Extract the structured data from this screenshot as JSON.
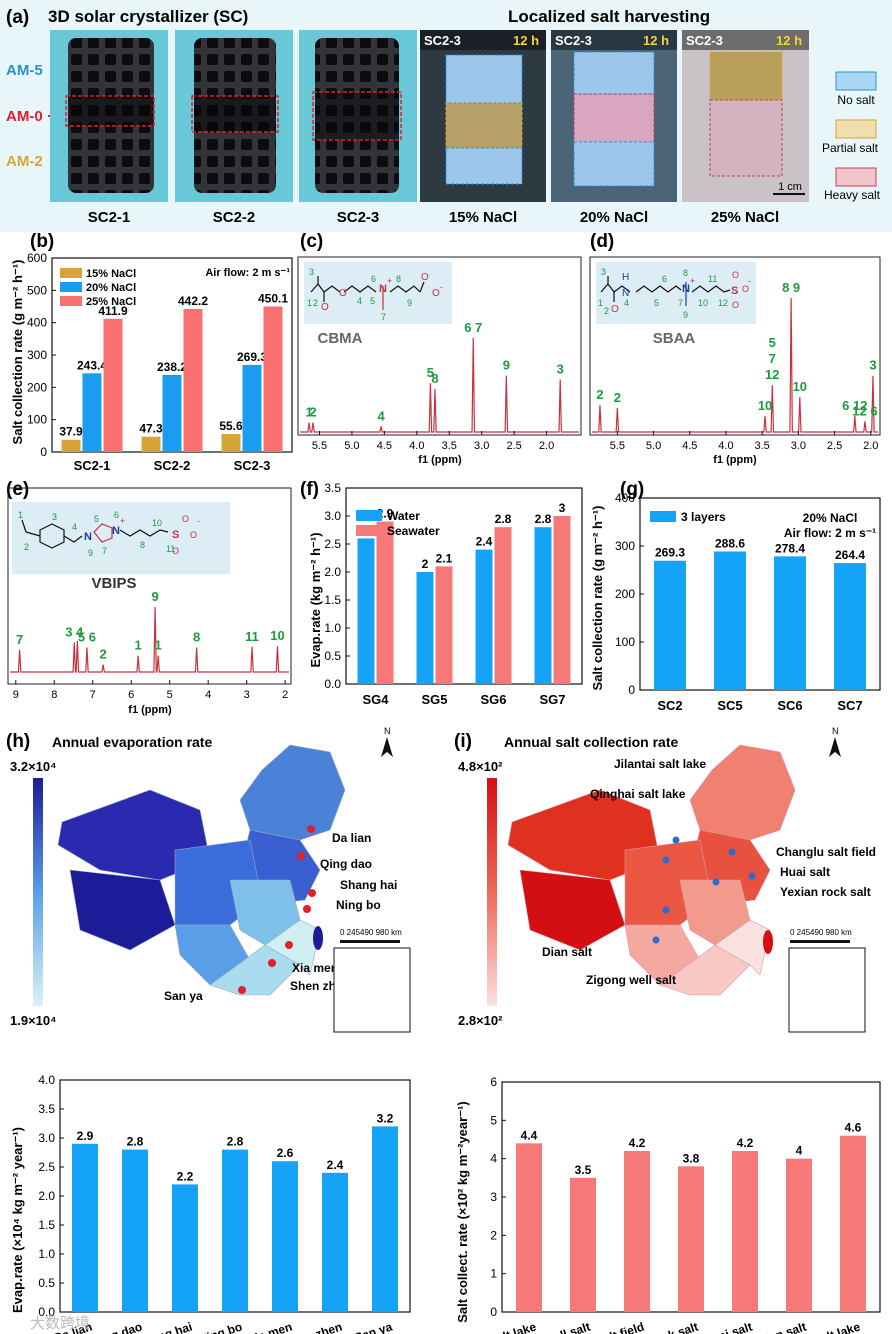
{
  "colors": {
    "teal_bg": "#69c8d8",
    "blue": "#1a9df0",
    "red": "#f87070",
    "tan": "#d6a437",
    "nmr": "#c6323f",
    "green": "#1f9a3d",
    "navy": "#1c1c98",
    "bar_blue": "#14a3f7",
    "bar_red": "#f67878"
  },
  "panel_a": {
    "label": "(a)",
    "title_left": "3D solar crystallizer (SC)",
    "title_right": "Localized salt harvesting",
    "side_labels": [
      "AM-5",
      "AM-0",
      "AM-2"
    ],
    "sc_captions": [
      "SC2-1",
      "SC2-2",
      "SC2-3"
    ],
    "photo_captions": [
      "15% NaCl",
      "20% NaCl",
      "25% NaCl"
    ],
    "photo_tag": "SC2-3",
    "photo_time": "12 h",
    "scale_bar": "1 cm",
    "legend": [
      "No salt",
      "Partial salt",
      "Heavy salt"
    ]
  },
  "panel_b": {
    "label": "(b)",
    "note": "Air flow: 2 m s⁻¹",
    "chart_data": {
      "type": "bar",
      "categories": [
        "SC2-1",
        "SC2-2",
        "SC2-3"
      ],
      "series": [
        {
          "name": "15% NaCl",
          "values": [
            37.9,
            47.3,
            55.6
          ]
        },
        {
          "name": "20% NaCl",
          "values": [
            243.4,
            238.2,
            269.3
          ]
        },
        {
          "name": "25% NaCl",
          "values": [
            411.9,
            442.2,
            450.1
          ]
        }
      ],
      "ylabel": "Salt collection rate (g m⁻² h⁻¹)",
      "ylim": [
        0,
        600
      ],
      "yticks": [
        0,
        100,
        200,
        300,
        400,
        500,
        600
      ]
    }
  },
  "panel_c": {
    "label": "(c)",
    "name": "CBMA",
    "xlabel": "f1 (ppm)",
    "xticks": [
      "5.5",
      "5.0",
      "4.5",
      "4.0",
      "3.5",
      "3.0",
      "2.5",
      "2.0"
    ],
    "struct_numbers": [
      "1",
      "2",
      "3",
      "4",
      "5",
      "6",
      "7",
      "8",
      "9"
    ],
    "struct_atoms": [
      "O",
      "O",
      "N",
      "+",
      "O",
      "O",
      "-"
    ],
    "peaks": [
      {
        "ppm": 5.66,
        "h": 0.1,
        "label": "1"
      },
      {
        "ppm": 5.6,
        "h": 0.1,
        "label": "2"
      },
      {
        "ppm": 4.55,
        "h": 0.06,
        "label": "4"
      },
      {
        "ppm": 3.79,
        "h": 0.52,
        "label": "5"
      },
      {
        "ppm": 3.72,
        "h": 0.46,
        "label": "8"
      },
      {
        "ppm": 3.13,
        "h": 1.0,
        "label": "6 7"
      },
      {
        "ppm": 2.62,
        "h": 0.6,
        "label": "9"
      },
      {
        "ppm": 1.79,
        "h": 0.56,
        "label": "3"
      }
    ]
  },
  "panel_d": {
    "label": "(d)",
    "name": "SBAA",
    "xlabel": "f1 (ppm)",
    "xticks": [
      "5.5",
      "5.0",
      "4.5",
      "4.0",
      "3.5",
      "3.0",
      "2.5",
      "2.0"
    ],
    "struct_numbers": [
      "1",
      "2",
      "3",
      "4",
      "5",
      "6",
      "7",
      "8",
      "9",
      "10",
      "11",
      "12"
    ],
    "struct_atoms": [
      "H",
      "N",
      "O",
      "N",
      "+",
      "S",
      "O",
      "O",
      "O",
      "-"
    ],
    "peaks": [
      {
        "ppm": 5.74,
        "h": 0.2,
        "label": "2"
      },
      {
        "ppm": 5.5,
        "h": 0.18,
        "label": "2"
      },
      {
        "ppm": 3.46,
        "h": 0.12,
        "label": "10"
      },
      {
        "ppm": 3.36,
        "h": 0.35,
        "label": "5 7 12"
      },
      {
        "ppm": 3.1,
        "h": 1.0,
        "label": "8 9"
      },
      {
        "ppm": 2.98,
        "h": 0.26,
        "label": "10"
      },
      {
        "ppm": 2.22,
        "h": 0.12,
        "label": "6 12"
      },
      {
        "ppm": 2.08,
        "h": 0.08,
        "label": "12 6"
      },
      {
        "ppm": 1.97,
        "h": 0.42,
        "label": "3"
      }
    ]
  },
  "panel_e": {
    "label": "(e)",
    "name": "VBIPS",
    "xlabel": "f1 (ppm)",
    "xticks": [
      "9",
      "8",
      "7",
      "6",
      "5",
      "4",
      "3",
      "2"
    ],
    "struct_numbers": [
      "1",
      "2",
      "3",
      "4",
      "5",
      "6",
      "7",
      "8",
      "9",
      "10",
      "11"
    ],
    "struct_atoms": [
      "N",
      "+",
      "N",
      "S",
      "O",
      "O",
      "O",
      "-"
    ],
    "peaks": [
      {
        "ppm": 8.9,
        "h": 0.3,
        "label": "7"
      },
      {
        "ppm": 7.48,
        "h": 0.4,
        "label": "3 4"
      },
      {
        "ppm": 7.4,
        "h": 0.42,
        "label": ""
      },
      {
        "ppm": 7.15,
        "h": 0.33,
        "label": "5 6"
      },
      {
        "ppm": 6.73,
        "h": 0.1,
        "label": "2"
      },
      {
        "ppm": 5.82,
        "h": 0.22,
        "label": "1"
      },
      {
        "ppm": 5.38,
        "h": 0.88,
        "label": "9"
      },
      {
        "ppm": 5.3,
        "h": 0.22,
        "label": "1"
      },
      {
        "ppm": 4.3,
        "h": 0.33,
        "label": "8"
      },
      {
        "ppm": 2.86,
        "h": 0.34,
        "label": "11"
      },
      {
        "ppm": 2.2,
        "h": 0.35,
        "label": "10"
      }
    ]
  },
  "panel_f": {
    "label": "(f)",
    "chart_data": {
      "type": "bar",
      "categories": [
        "SG4",
        "SG5",
        "SG6",
        "SG7"
      ],
      "series": [
        {
          "name": "Water",
          "values": [
            2.6,
            2.0,
            2.4,
            2.8
          ]
        },
        {
          "name": "Seawater",
          "values": [
            2.9,
            2.1,
            2.8,
            3.0
          ]
        }
      ],
      "ylabel": "Evap.rate (kg m⁻² h⁻¹)",
      "ylim": [
        0,
        3.5
      ],
      "yticks": [
        "0.0",
        "0.5",
        "1.0",
        "1.5",
        "2.0",
        "2.5",
        "3.0",
        "3.5"
      ]
    }
  },
  "panel_g": {
    "label": "(g)",
    "note1": "20% NaCl",
    "note2": "Air flow: 2 m s⁻¹",
    "chart_data": {
      "type": "bar",
      "categories": [
        "SC2",
        "SC5",
        "SC6",
        "SC7"
      ],
      "series": [
        {
          "name": "3 layers",
          "values": [
            269.3,
            288.6,
            278.4,
            264.4
          ]
        }
      ],
      "ylabel": "Salt collection rate (g m⁻² h⁻¹)",
      "ylim": [
        0,
        400
      ],
      "yticks": [
        0,
        100,
        200,
        300,
        400
      ]
    }
  },
  "panel_h": {
    "label": "(h)",
    "title": "Annual evaporation rate",
    "scale_max": "3.2×10⁴",
    "scale_min": "1.9×10⁴",
    "north": "N",
    "scale_label": "0   245490      980 km",
    "city_labels": [
      "Da lian",
      "Qing dao",
      "Shang hai",
      "Ning bo",
      "Xia men",
      "Shen zhen",
      "San ya"
    ],
    "chart_data": {
      "type": "bar",
      "categories": [
        "Da lian",
        "Qing dao",
        "Shang hai",
        "Ning bo",
        "Xia men",
        "Shen zhen",
        "San ya"
      ],
      "values": [
        2.9,
        2.8,
        2.2,
        2.8,
        2.6,
        2.4,
        3.2
      ],
      "ylabel": "Evap.rate (×10⁴ kg m⁻² year⁻¹)",
      "ylim": [
        0,
        4.0
      ],
      "yticks": [
        "0.0",
        "0.5",
        "1.0",
        "1.5",
        "2.0",
        "2.5",
        "3.0",
        "3.5",
        "4.0"
      ]
    }
  },
  "panel_i": {
    "label": "(i)",
    "title": "Annual salt collection rate",
    "scale_max": "4.8×10²",
    "scale_min": "2.8×10²",
    "north": "N",
    "scale_label": "0   245490      980 km",
    "site_labels": [
      "Jilantai salt lake",
      "Qinghai salt lake",
      "Changlu salt field",
      "Huai salt",
      "Yexian rock salt",
      "Dian salt",
      "Zigong well salt"
    ],
    "chart_data": {
      "type": "bar",
      "categories": [
        "Qinghai salt lake",
        "Zigong well salt",
        "Changlu salt field",
        "Yexian rock salt",
        "Huai salt",
        "Dian salt",
        "Jilantai salt lake"
      ],
      "values": [
        4.4,
        3.5,
        4.2,
        3.8,
        4.2,
        4.0,
        4.6
      ],
      "ylabel": "Salt collect. rate (×10² kg m⁻²year⁻¹)",
      "ylim": [
        0,
        6
      ],
      "yticks": [
        0,
        1,
        2,
        3,
        4,
        5,
        6
      ]
    }
  },
  "watermark": "大数跨境"
}
